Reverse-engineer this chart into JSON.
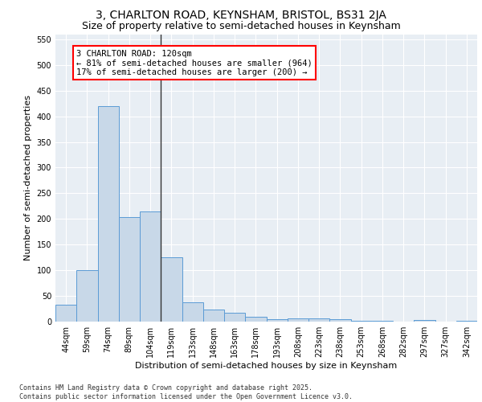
{
  "title_line1": "3, CHARLTON ROAD, KEYNSHAM, BRISTOL, BS31 2JA",
  "title_line2": "Size of property relative to semi-detached houses in Keynsham",
  "xlabel": "Distribution of semi-detached houses by size in Keynsham",
  "ylabel": "Number of semi-detached properties",
  "categories": [
    "44sqm",
    "59sqm",
    "74sqm",
    "89sqm",
    "104sqm",
    "119sqm",
    "133sqm",
    "148sqm",
    "163sqm",
    "178sqm",
    "193sqm",
    "208sqm",
    "223sqm",
    "238sqm",
    "253sqm",
    "268sqm",
    "282sqm",
    "297sqm",
    "327sqm",
    "342sqm"
  ],
  "values": [
    33,
    101,
    420,
    204,
    215,
    126,
    38,
    23,
    18,
    9,
    5,
    7,
    7,
    4,
    1,
    2,
    0,
    3,
    0,
    2
  ],
  "bar_color": "#c8d8e8",
  "bar_edge_color": "#5b9bd5",
  "vline_x_index": 5,
  "vline_color": "#333333",
  "annotation_text": "3 CHARLTON ROAD: 120sqm\n← 81% of semi-detached houses are smaller (964)\n17% of semi-detached houses are larger (200) →",
  "annotation_box_color": "white",
  "annotation_box_edge_color": "red",
  "ylim": [
    0,
    560
  ],
  "yticks": [
    0,
    50,
    100,
    150,
    200,
    250,
    300,
    350,
    400,
    450,
    500,
    550
  ],
  "background_color": "#e8eef4",
  "footer_text": "Contains HM Land Registry data © Crown copyright and database right 2025.\nContains public sector information licensed under the Open Government Licence v3.0.",
  "title_fontsize": 10,
  "subtitle_fontsize": 9,
  "axis_label_fontsize": 8,
  "tick_fontsize": 7,
  "annotation_fontsize": 7.5,
  "footer_fontsize": 6
}
